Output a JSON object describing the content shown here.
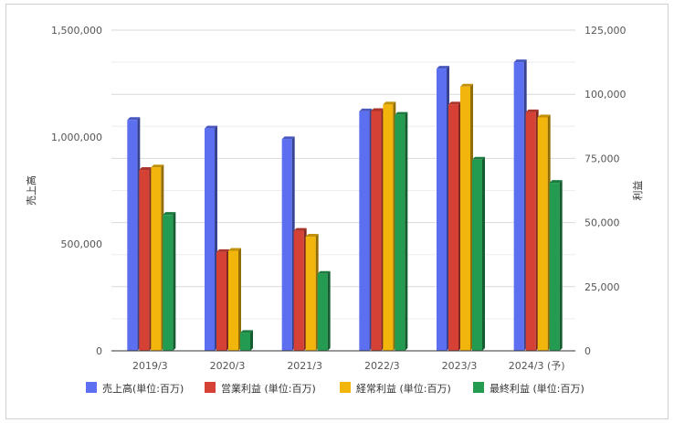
{
  "chart_data": {
    "type": "bar",
    "categories": [
      "2019/3",
      "2020/3",
      "2021/3",
      "2022/3",
      "2023/3",
      "2024/3 (予)"
    ],
    "series": [
      {
        "name": "売上高(単位:百万)",
        "axis": "left",
        "color": "#5b6ff0",
        "values": [
          1080000,
          1040000,
          990000,
          1120000,
          1320000,
          1350000
        ]
      },
      {
        "name": "営業利益 (単位:百万)",
        "axis": "right",
        "color": "#d64136",
        "values": [
          70500,
          38500,
          46800,
          93500,
          96000,
          93000
        ]
      },
      {
        "name": "経常利益 (単位:百万)",
        "axis": "right",
        "color": "#f2b50c",
        "values": [
          71500,
          39000,
          44500,
          96000,
          103000,
          91000
        ]
      },
      {
        "name": "最終利益 (単位:百万)",
        "axis": "right",
        "color": "#239b50",
        "values": [
          53000,
          7000,
          30000,
          92000,
          74500,
          65500
        ]
      }
    ],
    "left_axis": {
      "title": "売上高",
      "ylim": [
        0,
        1500000
      ],
      "ticks": [
        "0",
        "500,000",
        "1,000,000",
        "1,500,000"
      ]
    },
    "right_axis": {
      "title": "利益",
      "ylim": [
        0,
        125000
      ],
      "ticks": [
        "0",
        "25,000",
        "50,000",
        "75,000",
        "100,000",
        "125,000"
      ]
    },
    "grid": true,
    "legend_position": "bottom"
  }
}
